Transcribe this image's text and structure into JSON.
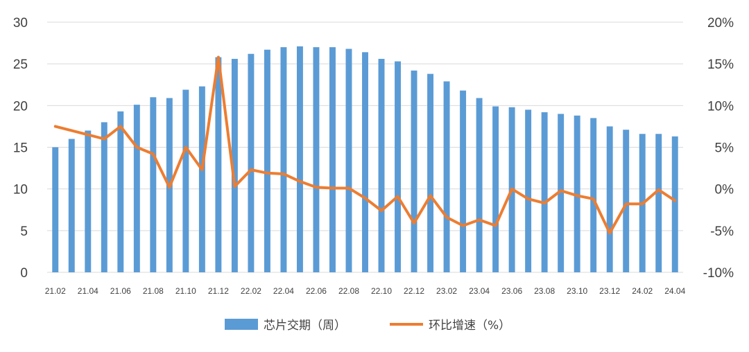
{
  "chart_data": {
    "type": "bar",
    "categories": [
      "21.02",
      "21.03",
      "21.04",
      "21.05",
      "21.06",
      "21.07",
      "21.08",
      "21.09",
      "21.10",
      "21.11",
      "21.12",
      "22.01",
      "22.02",
      "22.03",
      "22.04",
      "22.05",
      "22.06",
      "22.07",
      "22.08",
      "22.09",
      "22.10",
      "22.11",
      "22.12",
      "23.01",
      "23.02",
      "23.03",
      "23.04",
      "23.05",
      "23.06",
      "23.07",
      "23.08",
      "23.09",
      "23.10",
      "23.11",
      "23.12",
      "24.01",
      "24.02",
      "24.03",
      "24.04"
    ],
    "x_tick_labels": [
      "21.02",
      "21.04",
      "21.06",
      "21.08",
      "21.10",
      "21.12",
      "22.02",
      "22.04",
      "22.06",
      "22.08",
      "22.10",
      "22.12",
      "23.02",
      "23.04",
      "23.06",
      "23.08",
      "23.10",
      "23.12",
      "24.02",
      "24.04"
    ],
    "series": [
      {
        "name": "芯片交期（周）",
        "type": "bar",
        "axis": "left",
        "color": "#5b9bd5",
        "values": [
          15.0,
          16.0,
          17.0,
          18.0,
          19.3,
          20.1,
          21.0,
          20.9,
          21.9,
          22.3,
          25.8,
          25.6,
          26.2,
          26.7,
          27.0,
          27.1,
          27.0,
          27.0,
          26.8,
          26.4,
          25.6,
          25.3,
          24.2,
          23.8,
          22.9,
          21.8,
          20.9,
          19.9,
          19.8,
          19.5,
          19.2,
          19.0,
          18.8,
          18.5,
          17.5,
          17.1,
          16.6,
          16.6,
          16.3
        ]
      },
      {
        "name": "环比增速（%）",
        "type": "line",
        "axis": "right",
        "color": "#ed7d31",
        "values": [
          7.5,
          7.0,
          6.5,
          6.0,
          7.5,
          5.0,
          4.2,
          0.2,
          5.0,
          2.3,
          15.8,
          0.3,
          2.3,
          1.9,
          1.8,
          0.9,
          0.2,
          0.1,
          0.1,
          -1.1,
          -2.6,
          -0.9,
          -4.1,
          -0.8,
          -3.4,
          -4.4,
          -3.7,
          -4.4,
          0.0,
          -1.2,
          -1.7,
          -0.2,
          -0.8,
          -1.2,
          -5.3,
          -1.8,
          -1.8,
          -0.1,
          -1.4
        ]
      }
    ],
    "left_axis": {
      "min": 0,
      "max": 30,
      "step": 5,
      "ticks": [
        "0",
        "5",
        "10",
        "15",
        "20",
        "25",
        "30"
      ]
    },
    "right_axis": {
      "min": -10,
      "max": 20,
      "step": 5,
      "ticks": [
        "-10%",
        "-5%",
        "0%",
        "5%",
        "10%",
        "15%",
        "20%"
      ]
    },
    "grid": true,
    "legend_position": "bottom"
  }
}
